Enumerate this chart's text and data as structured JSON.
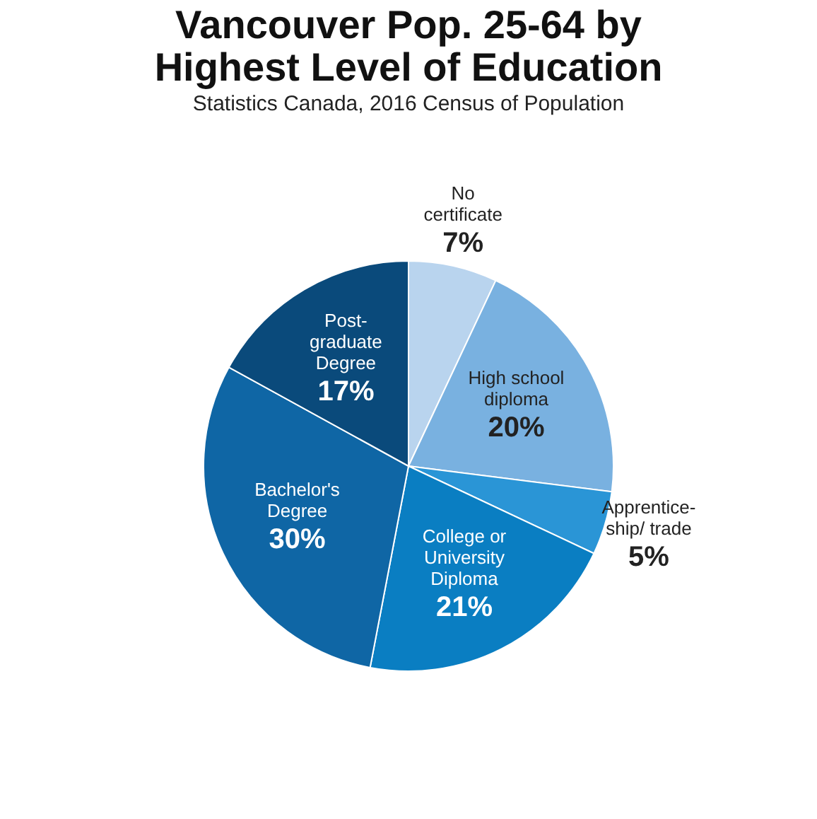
{
  "chart_data": {
    "type": "pie",
    "title": [
      "Vancouver Pop. 25-64 by",
      "Highest Level of Education"
    ],
    "subtitle": "Statistics Canada, 2016 Census of Population",
    "categories": [
      "No\ncertificate",
      "High school\ndiploma",
      "Apprentice-\nship/ trade",
      "College or\nUniversity\nDiploma",
      "Bachelor's\nDegree",
      "Post-\ngraduate\nDegree"
    ],
    "values": [
      7,
      20,
      5,
      21,
      30,
      17
    ],
    "value_labels": [
      "7%",
      "20%",
      "5%",
      "21%",
      "30%",
      "17%"
    ],
    "colors": [
      "#b9d4ee",
      "#79b1e0",
      "#2a95d6",
      "#0a7ec2",
      "#0f66a5",
      "#0a4a7b"
    ],
    "legend": false
  }
}
